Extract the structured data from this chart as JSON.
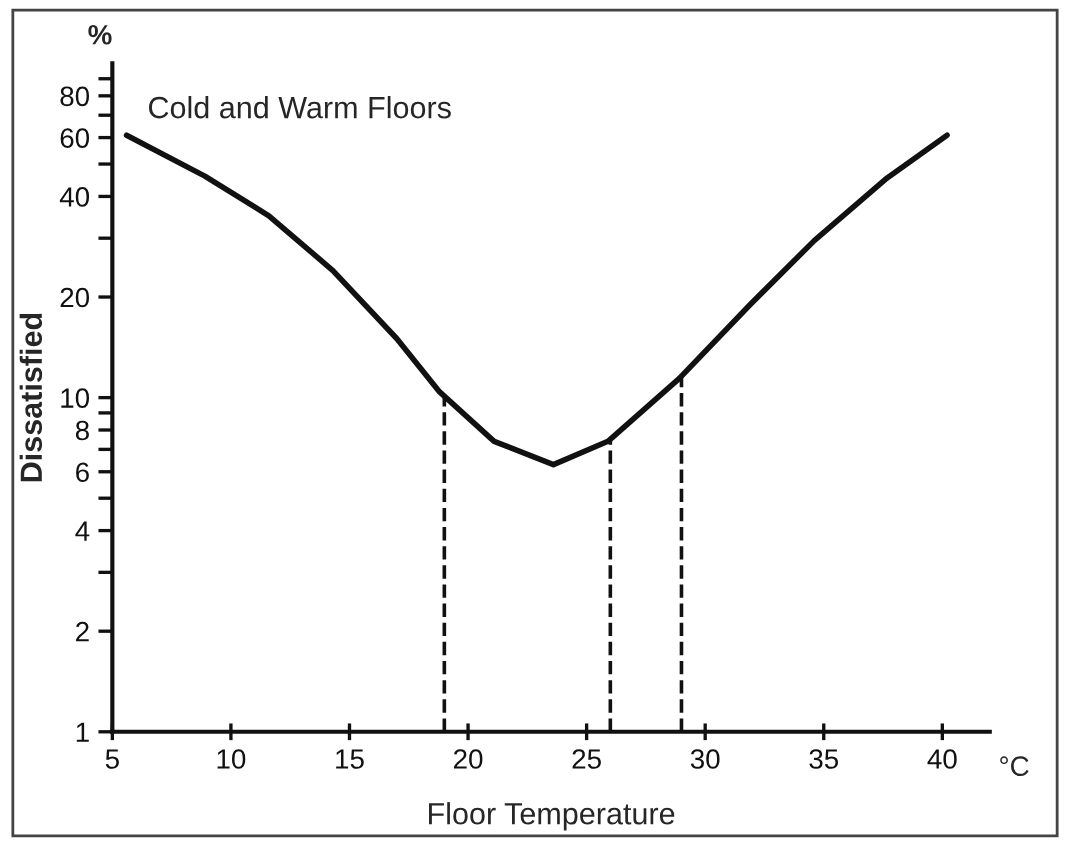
{
  "chart_data": {
    "type": "line",
    "title": "Cold and Warm Floors",
    "xlabel": "Floor Temperature",
    "ylabel": "Dissatisfied",
    "annotations": [
      "%",
      "°C"
    ],
    "x": [
      5.6,
      8.9,
      11.6,
      14.3,
      17.0,
      18.8,
      21.1,
      23.6,
      25.9,
      28.9,
      31.9,
      34.6,
      37.6,
      40.2
    ],
    "series": [
      {
        "color": "#111111",
        "values": [
          61,
          46,
          35,
          24,
          15,
          10.4,
          7.4,
          6.3,
          7.4,
          11.4,
          19,
          29.5,
          45,
          61
        ]
      }
    ],
    "log": "y",
    "xlim": [
      5,
      42
    ],
    "ylim": [
      1,
      100
    ],
    "xticks": [
      5,
      10,
      15,
      20,
      25,
      30,
      35,
      40
    ],
    "yticks": [
      1,
      2,
      {
        "value": 3,
        "label": null
      },
      4,
      {
        "value": 5,
        "label": null
      },
      6,
      {
        "value": 7,
        "label": null
      },
      8,
      {
        "value": 9,
        "label": null
      },
      10,
      20,
      {
        "value": 30,
        "label": null
      },
      40,
      {
        "value": 50,
        "label": null
      },
      60,
      {
        "value": 70,
        "label": null
      },
      80,
      {
        "value": 90,
        "label": null
      }
    ],
    "ref_lines": [
      {
        "axis": "x",
        "value": 19,
        "line_style": "dashed"
      },
      {
        "axis": "x",
        "value": 26,
        "line_style": "dashed"
      },
      {
        "axis": "x",
        "value": 29,
        "line_style": "dashed"
      }
    ],
    "grid": false,
    "legend": false,
    "marker": "none",
    "line_style": "solid"
  }
}
